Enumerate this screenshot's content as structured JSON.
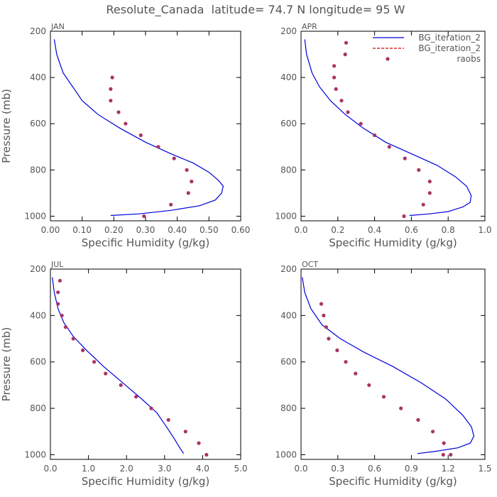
{
  "figure_title": "Resolute_Canada  latitude= 74.7 N longitude= 95 W",
  "colors": {
    "model": "#0000dd",
    "model_dashed": "#dd0000",
    "obs": "#aa3366",
    "axis": "#000000",
    "text": "#555555"
  },
  "legend": {
    "placement": "top-right of APR panel",
    "entries": [
      {
        "label": "BG_iteration_2",
        "style": "solid-line",
        "color": "#0000dd"
      },
      {
        "label": "BG_iteration_2",
        "style": "dashed-line",
        "color": "#dd0000"
      },
      {
        "label": "raobs",
        "style": "dot",
        "color": "#aa3366"
      }
    ]
  },
  "chart_data": [
    {
      "type": "line",
      "panel_label": "JAN",
      "xlabel": "Specific Humidity (g/kg)",
      "ylabel": "Pressure (mb)",
      "xlim": [
        0,
        0.6
      ],
      "ylim": [
        200,
        1020
      ],
      "y_inverted": true,
      "xticks": [
        0,
        0.1,
        0.2,
        0.3,
        0.4,
        0.5,
        0.6
      ],
      "xtick_labels": [
        "0.00",
        "0.10",
        "0.20",
        "0.30",
        "0.40",
        "0.50",
        "0.60"
      ],
      "yticks": [
        200,
        400,
        600,
        800,
        1000
      ],
      "ytick_labels": [
        "200",
        "400",
        "600",
        "800",
        "1000"
      ],
      "series": [
        {
          "name": "BG_iteration_2",
          "kind": "line",
          "x": [
            0.012,
            0.02,
            0.04,
            0.07,
            0.1,
            0.15,
            0.22,
            0.3,
            0.38,
            0.45,
            0.5,
            0.53,
            0.545,
            0.54,
            0.52,
            0.47,
            0.38,
            0.28,
            0.19
          ],
          "y": [
            235,
            300,
            380,
            440,
            500,
            560,
            620,
            680,
            730,
            770,
            810,
            845,
            870,
            900,
            930,
            955,
            975,
            990,
            997
          ]
        },
        {
          "name": "raobs",
          "kind": "scatter",
          "x": [
            0.195,
            0.19,
            0.19,
            0.215,
            0.237,
            0.285,
            0.34,
            0.39,
            0.43,
            0.445,
            0.435,
            0.38,
            0.295
          ],
          "y": [
            400,
            450,
            500,
            550,
            600,
            650,
            700,
            750,
            800,
            850,
            900,
            950,
            1000
          ]
        }
      ]
    },
    {
      "type": "line",
      "panel_label": "APR",
      "xlabel": "Specific Humidity (g/kg)",
      "ylabel": "",
      "xlim": [
        0,
        1.0
      ],
      "ylim": [
        200,
        1020
      ],
      "y_inverted": true,
      "xticks": [
        0,
        0.2,
        0.4,
        0.6,
        0.8,
        1.0
      ],
      "xtick_labels": [
        "0.0",
        "0.2",
        "0.4",
        "0.6",
        "0.8",
        "1.0"
      ],
      "yticks": [
        200,
        400,
        600,
        800,
        1000
      ],
      "ytick_labels": [
        "200",
        "400",
        "600",
        "800",
        "1000"
      ],
      "series": [
        {
          "name": "BG_iteration_2",
          "kind": "line",
          "x": [
            0.02,
            0.03,
            0.06,
            0.1,
            0.16,
            0.24,
            0.34,
            0.46,
            0.6,
            0.74,
            0.84,
            0.9,
            0.925,
            0.92,
            0.88,
            0.8,
            0.7,
            0.59
          ],
          "y": [
            235,
            300,
            380,
            440,
            500,
            560,
            620,
            680,
            730,
            780,
            830,
            870,
            910,
            940,
            960,
            980,
            990,
            997
          ]
        },
        {
          "name": "raobs",
          "kind": "scatter",
          "x": [
            0.245,
            0.24,
            0.18,
            0.18,
            0.19,
            0.22,
            0.255,
            0.325,
            0.4,
            0.48,
            0.565,
            0.64,
            0.7,
            0.7,
            0.665,
            0.56
          ],
          "y": [
            250,
            300,
            350,
            400,
            450,
            500,
            550,
            600,
            650,
            700,
            750,
            800,
            850,
            900,
            950,
            1000
          ]
        }
      ]
    },
    {
      "type": "line",
      "panel_label": "JUL",
      "xlabel": "Specific Humidity (g/kg)",
      "ylabel": "Pressure (mb)",
      "xlim": [
        0,
        5.0
      ],
      "ylim": [
        200,
        1020
      ],
      "y_inverted": true,
      "xticks": [
        0,
        1,
        2,
        3,
        4,
        5
      ],
      "xtick_labels": [
        "0.0",
        "1.0",
        "2.0",
        "3.0",
        "4.0",
        "5.0"
      ],
      "yticks": [
        200,
        400,
        600,
        800,
        1000
      ],
      "ytick_labels": [
        "200",
        "400",
        "600",
        "800",
        "1000"
      ],
      "series": [
        {
          "name": "BG_iteration_2",
          "kind": "line",
          "x": [
            0.05,
            0.1,
            0.2,
            0.35,
            0.6,
            0.95,
            1.4,
            1.9,
            2.4,
            2.8,
            3.05,
            3.25,
            3.4,
            3.5
          ],
          "y": [
            235,
            300,
            370,
            430,
            490,
            550,
            620,
            690,
            760,
            820,
            880,
            930,
            970,
            995
          ]
        },
        {
          "name": "raobs",
          "kind": "scatter",
          "x": [
            0.25,
            0.2,
            0.2,
            0.3,
            0.4,
            0.6,
            0.85,
            1.15,
            1.45,
            1.85,
            2.25,
            2.65,
            3.1,
            3.55,
            3.9,
            4.1
          ],
          "y": [
            250,
            300,
            350,
            400,
            450,
            500,
            550,
            600,
            650,
            700,
            750,
            800,
            850,
            900,
            950,
            1000
          ]
        }
      ]
    },
    {
      "type": "line",
      "panel_label": "OCT",
      "xlabel": "Specific Humidity (g/kg)",
      "ylabel": "",
      "xlim": [
        0,
        1.5
      ],
      "ylim": [
        200,
        1020
      ],
      "y_inverted": true,
      "xticks": [
        0,
        0.3,
        0.6,
        0.9,
        1.2,
        1.5
      ],
      "xtick_labels": [
        "0.0",
        "0.3",
        "0.6",
        "0.9",
        "1.2",
        "1.5"
      ],
      "yticks": [
        200,
        400,
        600,
        800,
        1000
      ],
      "ytick_labels": [
        "200",
        "400",
        "600",
        "800",
        "1000"
      ],
      "series": [
        {
          "name": "BG_iteration_2",
          "kind": "line",
          "x": [
            0.01,
            0.03,
            0.08,
            0.17,
            0.32,
            0.52,
            0.75,
            0.98,
            1.18,
            1.32,
            1.39,
            1.41,
            1.38,
            1.28,
            1.1,
            0.95
          ],
          "y": [
            235,
            300,
            370,
            440,
            500,
            560,
            620,
            690,
            760,
            830,
            880,
            920,
            950,
            970,
            985,
            995
          ]
        },
        {
          "name": "raobs",
          "kind": "scatter",
          "x": [
            0.165,
            0.185,
            0.205,
            0.225,
            0.295,
            0.365,
            0.445,
            0.555,
            0.675,
            0.815,
            0.955,
            1.075,
            1.165,
            1.22,
            1.16
          ],
          "y": [
            350,
            400,
            450,
            500,
            550,
            600,
            650,
            700,
            750,
            800,
            850,
            900,
            950,
            1000,
            1000
          ]
        }
      ]
    }
  ]
}
